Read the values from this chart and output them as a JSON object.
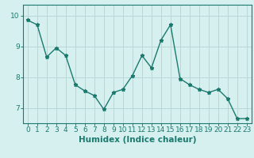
{
  "x": [
    0,
    1,
    2,
    3,
    4,
    5,
    6,
    7,
    8,
    9,
    10,
    11,
    12,
    13,
    14,
    15,
    16,
    17,
    18,
    19,
    20,
    21,
    22,
    23
  ],
  "y": [
    9.85,
    9.7,
    8.65,
    8.95,
    8.7,
    7.75,
    7.55,
    7.4,
    6.95,
    7.5,
    7.6,
    8.05,
    8.7,
    8.3,
    9.2,
    9.7,
    7.95,
    7.75,
    7.6,
    7.5,
    7.6,
    7.3,
    6.65,
    6.65
  ],
  "line_color": "#1a7a6e",
  "marker": "*",
  "marker_size": 3.5,
  "bg_color": "#d6f0f0",
  "grid_color": "#b8d8d8",
  "axis_color": "#1a7a6e",
  "xlabel": "Humidex (Indice chaleur)",
  "ylim": [
    6.5,
    10.35
  ],
  "xlim": [
    -0.5,
    23.5
  ],
  "yticks": [
    7,
    8,
    9,
    10
  ],
  "xtick_labels": [
    "0",
    "1",
    "2",
    "3",
    "4",
    "5",
    "6",
    "7",
    "8",
    "9",
    "10",
    "11",
    "12",
    "13",
    "14",
    "15",
    "16",
    "17",
    "18",
    "19",
    "20",
    "21",
    "22",
    "23"
  ],
  "label_fontsize": 7.5,
  "tick_fontsize": 6.5
}
